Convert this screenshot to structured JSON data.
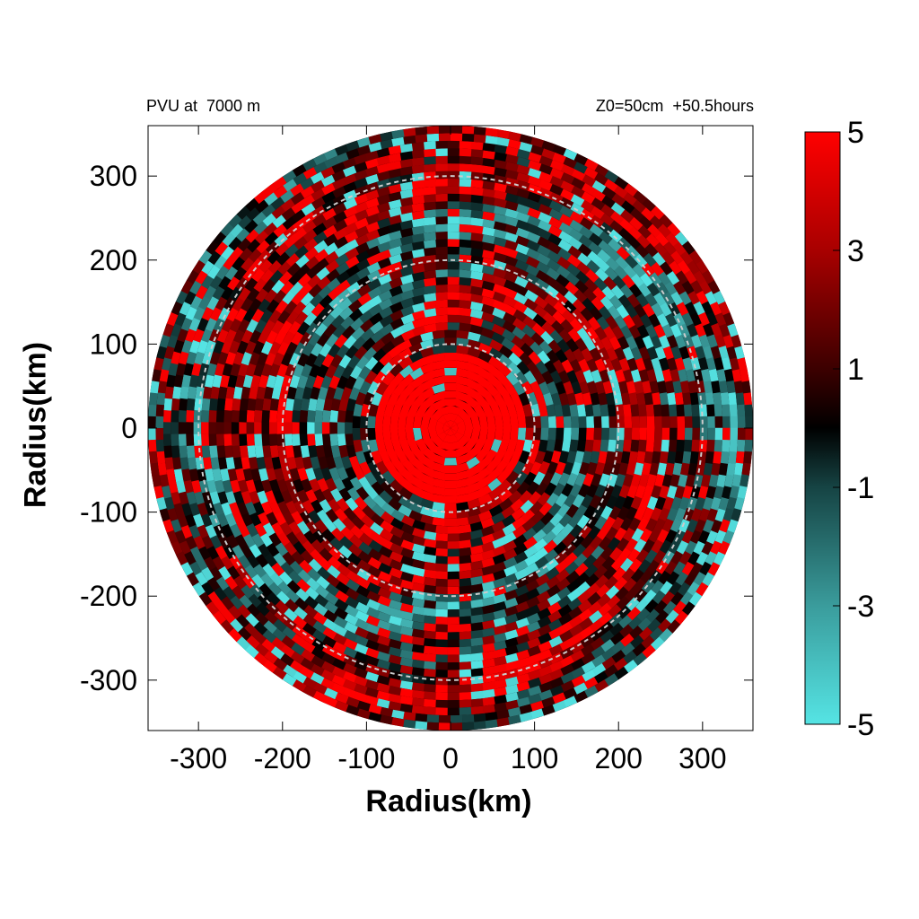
{
  "header": {
    "left_title": "PVU at  7000 m",
    "right_title": "Z0=50cm  +50.5hours"
  },
  "chart_data": {
    "type": "heatmap",
    "projection": "polar field on cartesian axes",
    "xlabel": "Radius(km)",
    "ylabel": "Radius(km)",
    "xlim": [
      -360,
      360
    ],
    "ylim": [
      -360,
      360
    ],
    "x_ticks": [
      -300,
      -200,
      -100,
      0,
      100,
      200,
      300
    ],
    "y_ticks": [
      300,
      200,
      100,
      0,
      -100,
      -200,
      -300
    ],
    "field_radius_km": 360,
    "reference_circles_km": [
      100,
      200,
      300
    ],
    "colorbar": {
      "min": -5,
      "max": 5,
      "ticks": [
        5,
        3,
        1,
        -1,
        -3,
        -5
      ],
      "stops": [
        {
          "value": -5,
          "color": "#55e4e4"
        },
        {
          "value": -3,
          "color": "#3a9c9c"
        },
        {
          "value": -1,
          "color": "#164444"
        },
        {
          "value": 0,
          "color": "#000000"
        },
        {
          "value": 1,
          "color": "#3c0000"
        },
        {
          "value": 3,
          "color": "#a80000"
        },
        {
          "value": 5,
          "color": "#ff0000"
        }
      ]
    },
    "core": {
      "radius_km": 90,
      "value": 5
    },
    "guide_circle_color": "#cccccc"
  }
}
